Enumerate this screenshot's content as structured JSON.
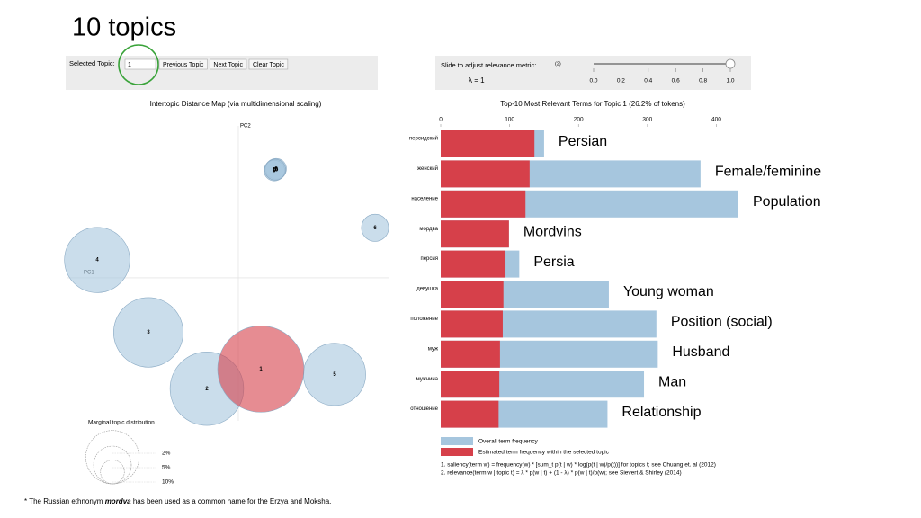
{
  "title": "10 topics",
  "controls": {
    "selected_topic_label": "Selected Topic:",
    "selected_topic": "1",
    "buttons": [
      "Previous Topic",
      "Next Topic",
      "Clear Topic"
    ],
    "slider_label": "Slide to adjust relevance metric:",
    "slider_footnote": "(2)",
    "lambda_label": "λ = 1",
    "lambda": 1,
    "slider_range": [
      0,
      1
    ],
    "slider_ticks": [
      {
        "value": 0,
        "label": "0.0"
      },
      {
        "value": 0.2,
        "label": "0.2"
      },
      {
        "value": 0.4,
        "label": "0.4"
      },
      {
        "value": 0.6,
        "label": "0.6"
      },
      {
        "value": 0.8,
        "label": "0.8"
      },
      {
        "value": 1,
        "label": "1.0"
      }
    ]
  },
  "chart_data": [
    {
      "type": "bubble",
      "title": "Intertopic Distance Map (via multidimensional scaling)",
      "x_label": "PC1",
      "y_label": "PC2",
      "labels": [
        "1",
        "2",
        "3",
        "4",
        "5",
        "6",
        "7",
        "8",
        "9",
        "10"
      ],
      "x": [
        0.25,
        -0.35,
        -1.0,
        -1.57,
        1.07,
        1.52,
        0.41,
        0.42,
        0.4,
        0.41
      ],
      "y": [
        -1.02,
        -1.24,
        -0.61,
        0.2,
        -1.08,
        0.56,
        1.21,
        1.22,
        1.2,
        1.21
      ],
      "sizes": [
        26.2,
        19,
        17,
        15,
        13.6,
        2.6,
        1.6,
        1.5,
        1.5,
        1.5
      ],
      "colors": [
        "#d6404a",
        "#a6c6de",
        "#a6c6de",
        "#a6c6de",
        "#a6c6de",
        "#a6c6de",
        "#a6c6de",
        "#a6c6de",
        "#a6c6de",
        "#a6c6de"
      ],
      "xlim": [
        -1.9,
        1.55
      ],
      "ylim": [
        -1.6,
        1.7
      ],
      "size_legend": {
        "title": "Marginal topic distribution",
        "sizes": [
          {
            "value": 2,
            "label": "2%"
          },
          {
            "value": 5,
            "label": "5%"
          },
          {
            "value": 10,
            "label": "10%"
          }
        ]
      }
    },
    {
      "type": "bar",
      "orientation": "horizontal",
      "title": "Top-10 Most Relevant Terms for Topic 1 (26.2% of tokens)",
      "categories": [
        "персидский",
        "женский",
        "население",
        "мордва",
        "персия",
        "девушка",
        "положение",
        "муж",
        "мужчина",
        "отношение"
      ],
      "series": [
        {
          "name": "Overall term frequency",
          "color": "#a6c6de",
          "values": [
            150,
            377,
            432,
            99,
            114,
            244,
            313,
            315,
            295,
            242
          ]
        },
        {
          "name": "Estimated term frequency within the selected topic",
          "color": "#d6404a",
          "values": [
            136,
            129,
            123,
            99,
            94,
            91,
            90,
            86,
            85,
            84
          ]
        }
      ],
      "xlim": [
        0,
        432
      ],
      "xticks": [
        0,
        100,
        200,
        300,
        400
      ],
      "annotations": [
        "Persian",
        "Female/feminine",
        "Population",
        "Mordvins",
        "Persia",
        "Young woman",
        "Position (social)",
        "Husband",
        "Man",
        "Relationship"
      ],
      "notes": [
        "1. saliency(term w) = frequency(w) * [sum_t p(t | w) * log(p(t | w)/p(t))] for topics t; see Chuang et. al (2012)",
        "2. relevance(term w | topic t) = λ * p(w | t) + (1 - λ) * p(w | t)/p(w); see Sievert & Shirley (2014)"
      ]
    }
  ],
  "footnote": [
    "* The Russian ethnonym ",
    "mordva",
    " has been used as a common name for the ",
    "Erzya",
    " and ",
    "Moksha",
    "."
  ]
}
